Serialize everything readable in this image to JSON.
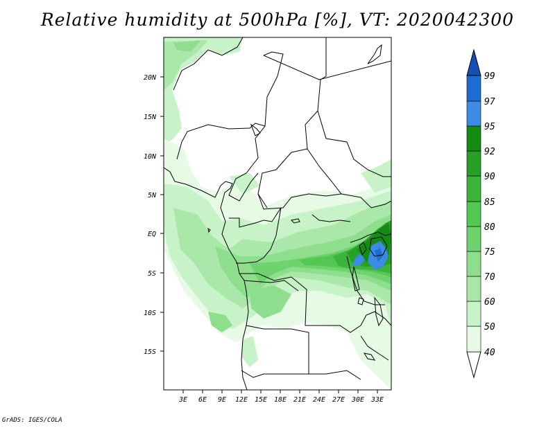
{
  "title": "Relative humidity at 500hPa [%], VT: 2020042300",
  "credit": "GrADS: IGES/COLA",
  "map": {
    "lat_labels": [
      "20N",
      "15N",
      "10N",
      "5N",
      "EQ",
      "5S",
      "10S",
      "15S"
    ],
    "lon_labels": [
      "3E",
      "6E",
      "9E",
      "12E",
      "15E",
      "18E",
      "21E",
      "24E",
      "27E",
      "30E",
      "33E"
    ]
  },
  "colorbar": {
    "levels": [
      "40",
      "50",
      "60",
      "70",
      "75",
      "80",
      "85",
      "90",
      "92",
      "95",
      "97",
      "99"
    ],
    "colors": [
      "#ffffff",
      "#e6fae6",
      "#c8f2c8",
      "#aae8aa",
      "#8ede8e",
      "#6ed26e",
      "#52c852",
      "#3ab43a",
      "#26a026",
      "#148c14",
      "#3c8ce6",
      "#1e6ed2",
      "#1450b4"
    ]
  }
}
